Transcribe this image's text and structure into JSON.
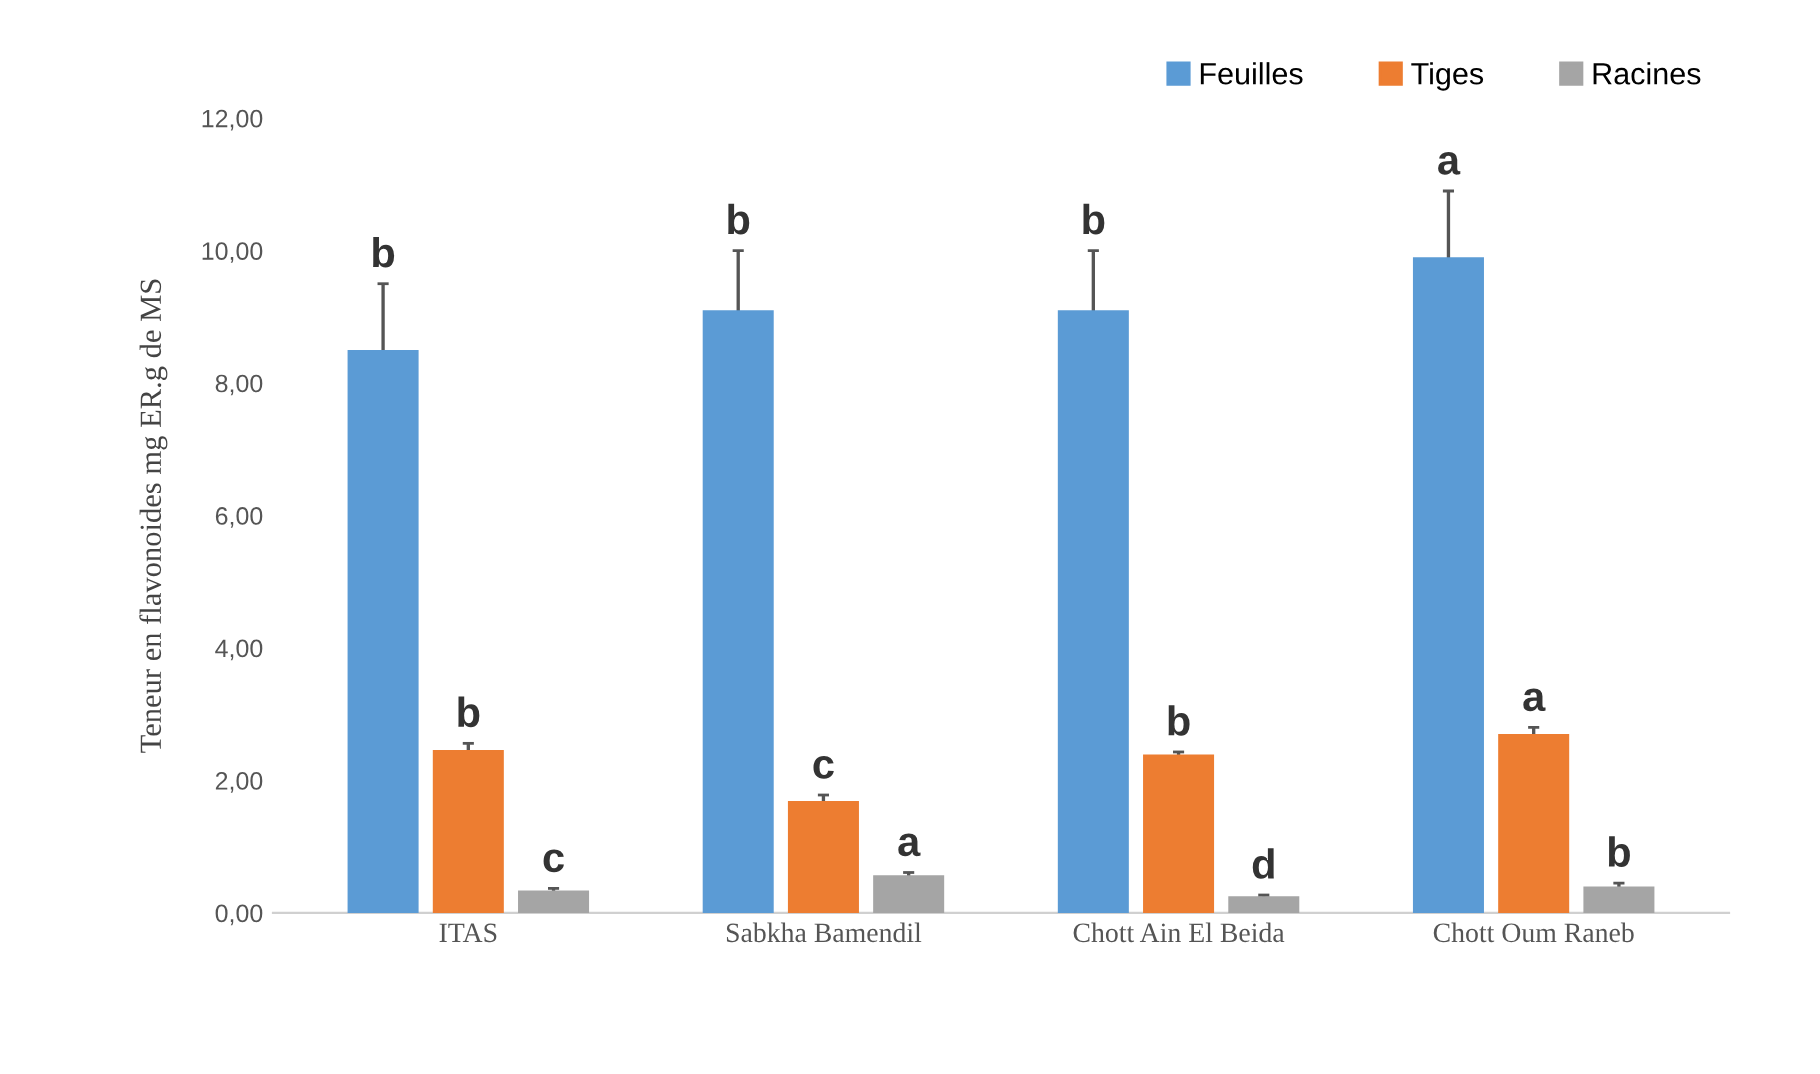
{
  "chart_data": {
    "type": "bar",
    "ylabel": "Teneur en flavonoides mg ER.g de MS",
    "categories": [
      "ITAS",
      "Sabkha Bamendil",
      "Chott Ain El Beida",
      "Chott Oum Raneb"
    ],
    "series": [
      {
        "name": "Feuilles",
        "color": "#5b9bd5",
        "values": [
          8.5,
          9.1,
          9.1,
          9.9
        ],
        "errors": [
          1.0,
          0.9,
          0.9,
          1.0
        ],
        "value_labels": [
          "b",
          "b",
          "b",
          "a"
        ]
      },
      {
        "name": "Tiges",
        "color": "#ed7d31",
        "values": [
          2.46,
          1.69,
          2.39,
          2.7
        ],
        "errors": [
          0.1,
          0.09,
          0.04,
          0.1
        ],
        "value_labels": [
          "b",
          "c",
          "b",
          "a"
        ]
      },
      {
        "name": "Racines",
        "color": "#a5a5a5",
        "values": [
          0.34,
          0.57,
          0.25,
          0.4
        ],
        "errors": [
          0.03,
          0.04,
          0.02,
          0.05
        ],
        "value_labels": [
          "c",
          "a",
          "d",
          "b"
        ]
      }
    ],
    "ylim": [
      0,
      12
    ],
    "yticks": [
      {
        "value": 0,
        "label": "0,00"
      },
      {
        "value": 2,
        "label": "2,00"
      },
      {
        "value": 4,
        "label": "4,00"
      },
      {
        "value": 6,
        "label": "6,00"
      },
      {
        "value": 8,
        "label": "8,00"
      },
      {
        "value": 10,
        "label": "10,00"
      },
      {
        "value": 12,
        "label": "12,00"
      }
    ],
    "grid": false,
    "legend": "top right"
  }
}
